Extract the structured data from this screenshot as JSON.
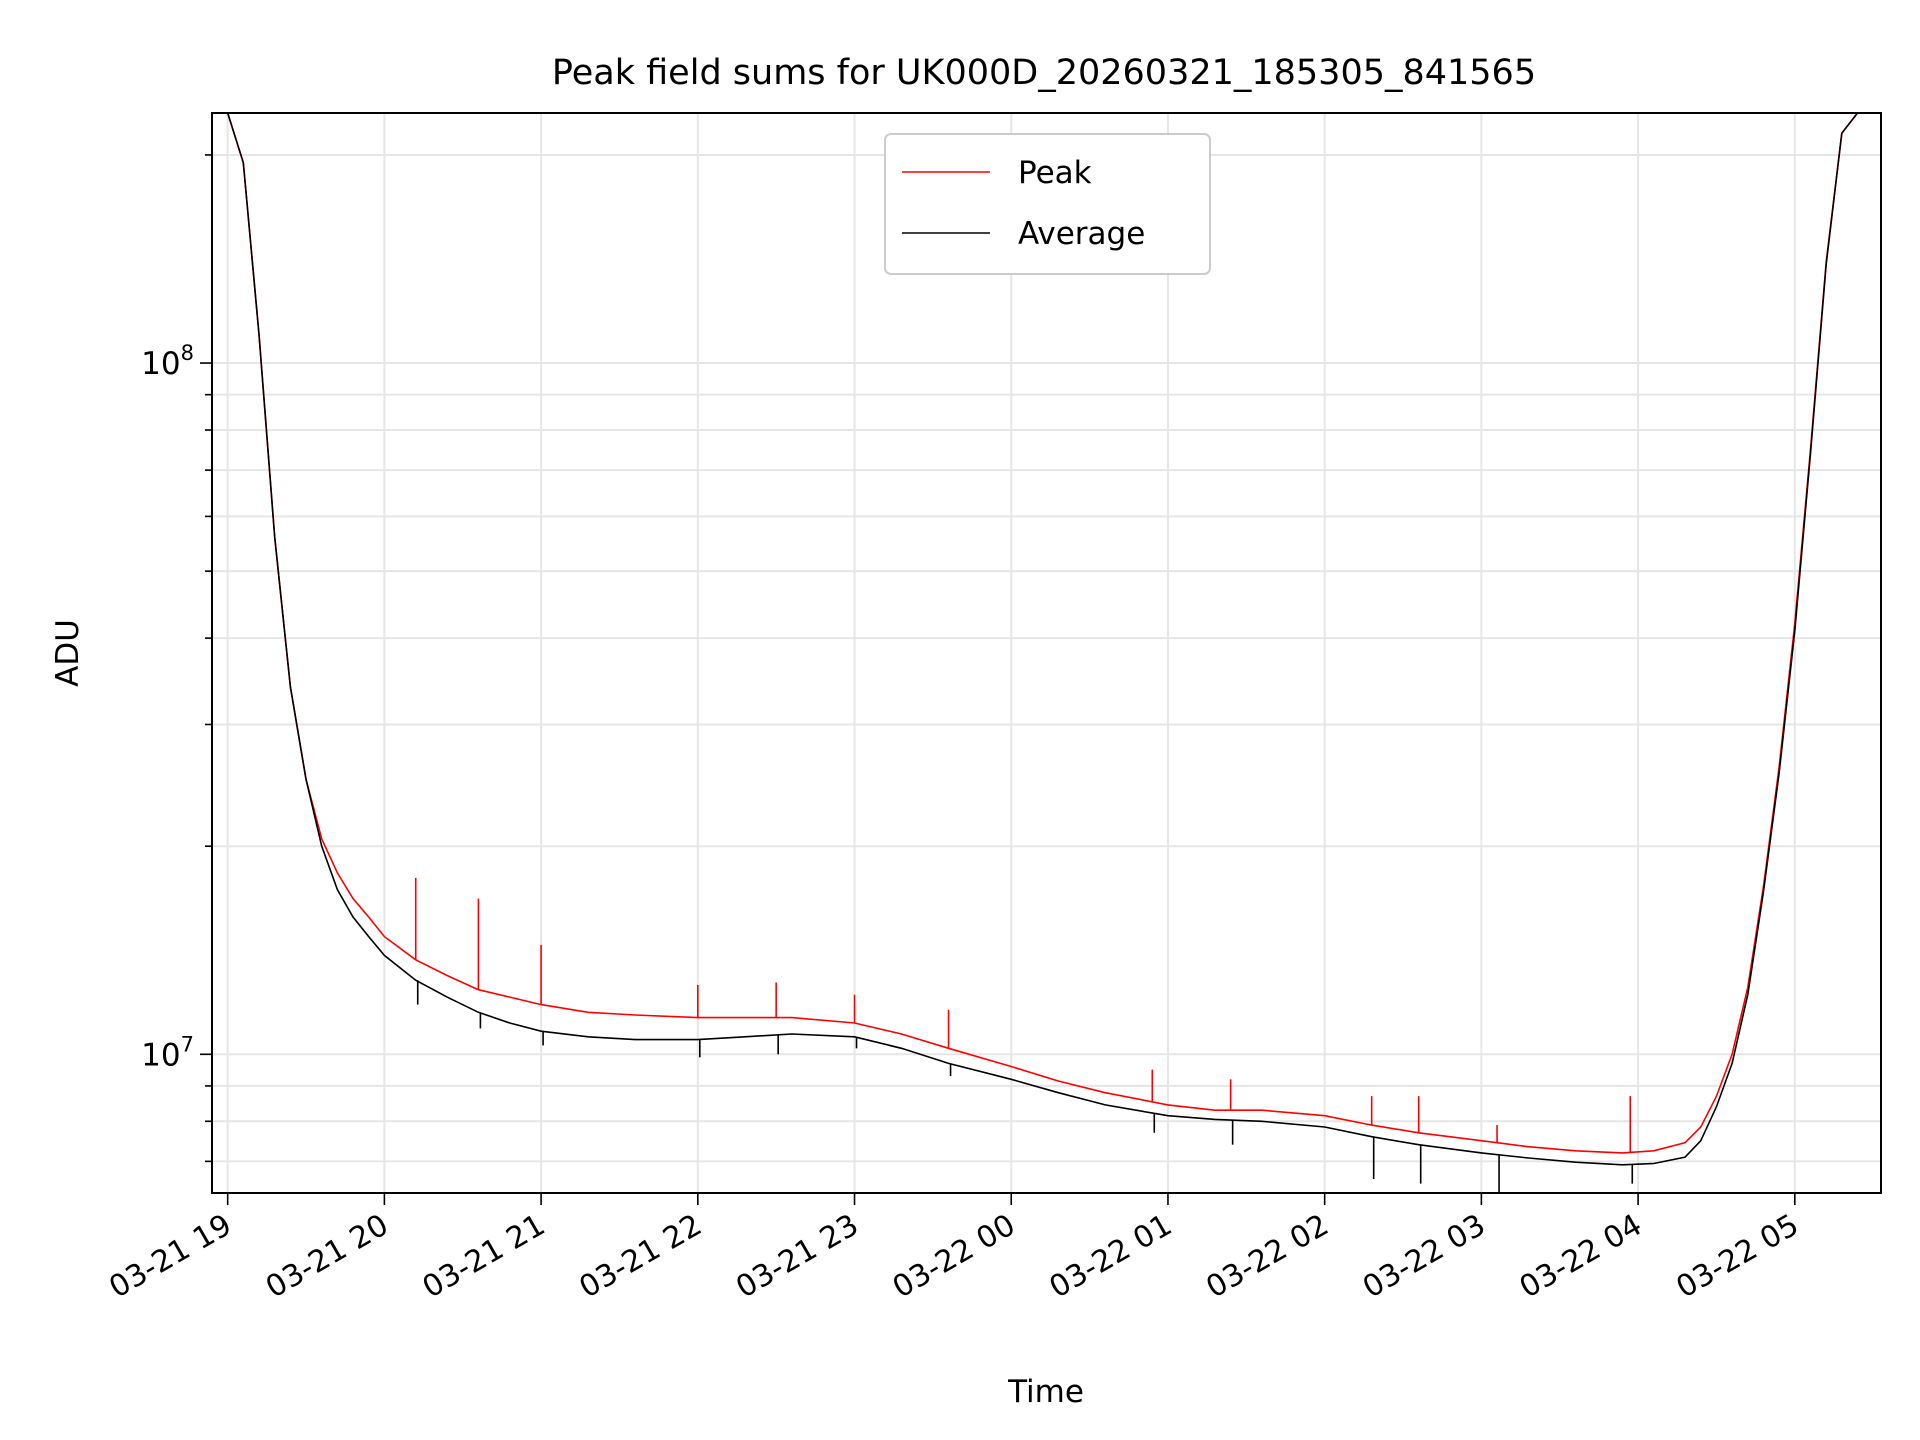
{
  "chart_data": {
    "type": "line",
    "title": "Peak field sums for UK000D_20260321_185305_841565",
    "xlabel": "Time",
    "ylabel": "ADU",
    "yscale": "log",
    "ylim": [
      6300000,
      230000000
    ],
    "xlim_hours": [
      -0.1,
      10.55
    ],
    "x_tick_labels": [
      "03-21 19",
      "03-21 20",
      "03-21 21",
      "03-21 22",
      "03-21 23",
      "03-22 00",
      "03-22 01",
      "03-22 02",
      "03-22 03",
      "03-22 04",
      "03-22 05"
    ],
    "x_tick_hours": [
      0,
      1,
      2,
      3,
      4,
      5,
      6,
      7,
      8,
      9,
      10
    ],
    "y_major_ticks": [
      {
        "value": 10000000,
        "base": "10",
        "exp": "7"
      },
      {
        "value": 100000000,
        "base": "10",
        "exp": "8"
      }
    ],
    "grid": true,
    "legend": {
      "position": "top-center",
      "entries": [
        "Peak",
        "Average"
      ]
    },
    "x_hours": [
      0.0,
      0.1,
      0.2,
      0.3,
      0.4,
      0.5,
      0.6,
      0.7,
      0.8,
      0.9,
      1.0,
      1.2,
      1.4,
      1.6,
      1.8,
      2.0,
      2.3,
      2.6,
      3.0,
      3.3,
      3.6,
      4.0,
      4.3,
      4.6,
      5.0,
      5.3,
      5.6,
      6.0,
      6.3,
      6.6,
      7.0,
      7.3,
      7.6,
      8.0,
      8.3,
      8.6,
      8.9,
      9.1,
      9.3,
      9.4,
      9.5,
      9.6,
      9.7,
      9.8,
      9.9,
      10.0,
      10.1,
      10.2,
      10.3,
      10.4
    ],
    "series": [
      {
        "name": "Peak",
        "color": "#ff0000",
        "values": [
          230000000,
          195000000,
          110000000,
          56000000,
          34000000,
          25000000,
          20500000,
          18300000,
          16800000,
          15800000,
          14800000,
          13700000,
          13000000,
          12400000,
          12100000,
          11800000,
          11500000,
          11400000,
          11300000,
          11300000,
          11300000,
          11100000,
          10700000,
          10200000,
          9600000,
          9150000,
          8800000,
          8450000,
          8300000,
          8300000,
          8150000,
          7900000,
          7700000,
          7500000,
          7350000,
          7250000,
          7200000,
          7250000,
          7450000,
          7850000,
          8700000,
          10000000,
          12500000,
          17500000,
          26000000,
          42000000,
          75000000,
          140000000,
          215000000,
          230000000
        ]
      },
      {
        "name": "Average",
        "color": "#000000",
        "values": [
          230000000,
          195000000,
          110000000,
          56000000,
          34000000,
          25000000,
          20000000,
          17300000,
          15800000,
          14800000,
          13900000,
          12800000,
          12100000,
          11500000,
          11100000,
          10800000,
          10600000,
          10500000,
          10500000,
          10600000,
          10700000,
          10600000,
          10200000,
          9700000,
          9200000,
          8800000,
          8450000,
          8150000,
          8050000,
          8000000,
          7850000,
          7600000,
          7400000,
          7200000,
          7080000,
          6980000,
          6920000,
          6950000,
          7100000,
          7500000,
          8400000,
          9700000,
          12200000,
          17200000,
          25500000,
          41000000,
          74000000,
          139000000,
          215000000,
          230000000
        ]
      }
    ],
    "spikes": [
      {
        "x": 1.2,
        "peak": 18000000,
        "average": 11800000
      },
      {
        "x": 1.6,
        "peak": 16800000,
        "average": 10900000
      },
      {
        "x": 2.0,
        "peak": 14400000,
        "average": 10300000
      },
      {
        "x": 3.0,
        "peak": 12600000,
        "average": 9900000
      },
      {
        "x": 3.5,
        "peak": 12700000,
        "average": 10000000
      },
      {
        "x": 4.0,
        "peak": 12200000,
        "average": 10200000
      },
      {
        "x": 4.6,
        "peak": 11600000,
        "average": 9300000
      },
      {
        "x": 5.9,
        "peak": 9500000,
        "average": 7700000
      },
      {
        "x": 6.4,
        "peak": 9200000,
        "average": 7400000
      },
      {
        "x": 7.3,
        "peak": 8700000,
        "average": 6600000
      },
      {
        "x": 7.6,
        "peak": 8700000,
        "average": 6500000
      },
      {
        "x": 8.1,
        "peak": 7900000,
        "average": 6300000
      },
      {
        "x": 8.95,
        "peak": 8700000,
        "average": 6500000
      }
    ]
  }
}
